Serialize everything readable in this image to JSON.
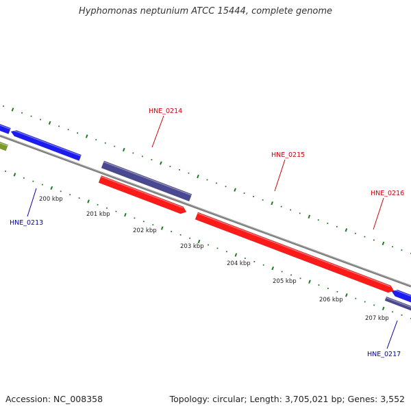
{
  "title": "Hyphomonas neptunium ATCC 15444, complete genome",
  "footer": {
    "accession": "Accession: NC_008358",
    "summary": "Topology: circular; Length: 3,705,021 bp; Genes: 3,552"
  },
  "colors": {
    "forward_cds": "#ff1a1a",
    "reverse_cds": "#1c1cf0",
    "purple_feature": "#4a4890",
    "olive_feature": "#7a9a2a",
    "backbone": "#7f7f7f",
    "ticks": "#1e7a1e",
    "forward_label": "#cc0000",
    "reverse_label": "#0000aa"
  },
  "kbp_labels": [
    "200 kbp",
    "201 kbp",
    "202 kbp",
    "203 kbp",
    "204 kbp",
    "205 kbp",
    "206 kbp",
    "207 kbp"
  ],
  "genes": [
    {
      "name": "HNE_0213",
      "strand": "reverse"
    },
    {
      "name": "HNE_0214",
      "strand": "forward"
    },
    {
      "name": "HNE_0215",
      "strand": "forward"
    },
    {
      "name": "HNE_0216",
      "strand": "forward"
    },
    {
      "name": "HNE_0217",
      "strand": "reverse"
    }
  ]
}
